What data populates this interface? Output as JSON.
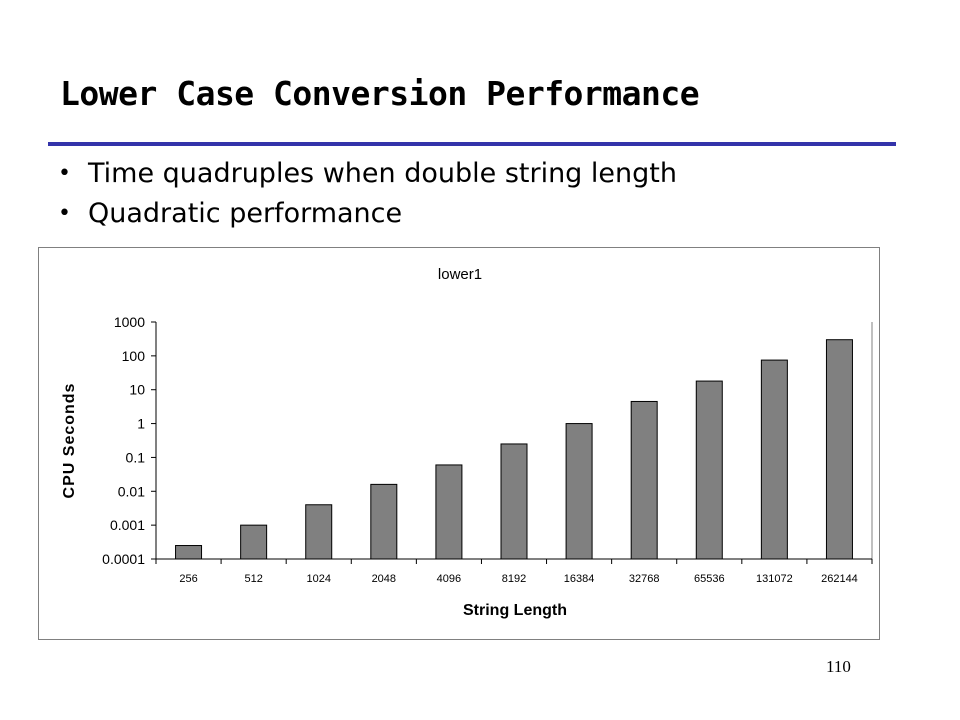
{
  "slide": {
    "title": "Lower Case Conversion Performance",
    "bullets": [
      "Time quadruples when double string length",
      "Quadratic performance"
    ],
    "page_number": "110",
    "bullet_glyph": "•"
  },
  "colors": {
    "title_rule": "#3333aa",
    "bar_fill": "#808080",
    "bar_stroke": "#000000",
    "plot_border": "#808080"
  },
  "chart_data": {
    "type": "bar",
    "title": "lower1",
    "xlabel": "String Length",
    "ylabel": "CPU Seconds",
    "y_scale": "log",
    "ylim": [
      0.0001,
      1000
    ],
    "y_ticks": [
      0.0001,
      0.001,
      0.01,
      0.1,
      1,
      10,
      100,
      1000
    ],
    "y_tick_labels": [
      "0.0001",
      "0.001",
      "0.01",
      "0.1",
      "1",
      "10",
      "100",
      "1000"
    ],
    "categories": [
      "256",
      "512",
      "1024",
      "2048",
      "4096",
      "8192",
      "16384",
      "32768",
      "65536",
      "131072",
      "262144"
    ],
    "values": [
      0.00025,
      0.001,
      0.004,
      0.016,
      0.06,
      0.25,
      1.0,
      4.5,
      18,
      75,
      300
    ],
    "grid": false,
    "legend": "none"
  }
}
